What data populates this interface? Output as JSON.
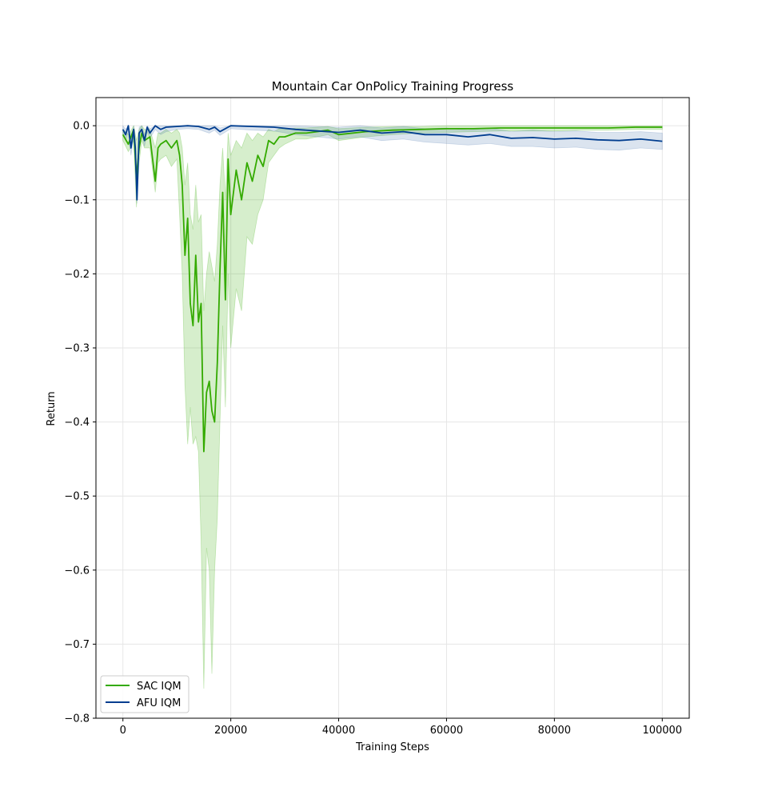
{
  "chart_data": {
    "type": "line",
    "title": "Mountain Car OnPolicy Training Progress",
    "xlabel": "Training Steps",
    "ylabel": "Return",
    "xlim": [
      -5000,
      105000
    ],
    "ylim": [
      -0.8,
      0.038
    ],
    "xticks": [
      0,
      20000,
      40000,
      60000,
      80000,
      100000
    ],
    "xtick_labels": [
      "0",
      "20000",
      "40000",
      "60000",
      "80000",
      "100000"
    ],
    "yticks": [
      0.0,
      -0.1,
      -0.2,
      -0.3,
      -0.4,
      -0.5,
      -0.6,
      -0.7,
      -0.8
    ],
    "ytick_labels": [
      "0.0",
      "−0.1",
      "−0.2",
      "−0.3",
      "−0.4",
      "−0.5",
      "−0.6",
      "−0.7",
      "−0.8"
    ],
    "grid": true,
    "legend_position": "lower-left",
    "series": [
      {
        "name": "SAC IQM",
        "color": "#33aa00",
        "fill_color": "#33aa00",
        "x": [
          0,
          1000,
          2000,
          2500,
          3000,
          3500,
          4000,
          5000,
          6000,
          6500,
          7000,
          8000,
          9000,
          10000,
          10500,
          11000,
          11500,
          12000,
          12500,
          13000,
          13500,
          14000,
          14500,
          15000,
          15500,
          16000,
          16500,
          17000,
          17500,
          18000,
          18500,
          19000,
          19500,
          20000,
          21000,
          22000,
          23000,
          24000,
          25000,
          26000,
          27000,
          28000,
          29000,
          30000,
          32000,
          34000,
          36000,
          38000,
          40000,
          45000,
          50000,
          55000,
          60000,
          65000,
          70000,
          75000,
          80000,
          85000,
          90000,
          95000,
          100000
        ],
        "y": [
          -0.012,
          -0.025,
          -0.005,
          -0.07,
          -0.03,
          -0.01,
          -0.02,
          -0.015,
          -0.075,
          -0.03,
          -0.025,
          -0.02,
          -0.03,
          -0.02,
          -0.04,
          -0.08,
          -0.175,
          -0.125,
          -0.24,
          -0.27,
          -0.175,
          -0.265,
          -0.24,
          -0.44,
          -0.36,
          -0.345,
          -0.385,
          -0.4,
          -0.32,
          -0.195,
          -0.09,
          -0.235,
          -0.045,
          -0.12,
          -0.06,
          -0.1,
          -0.05,
          -0.075,
          -0.04,
          -0.055,
          -0.02,
          -0.025,
          -0.015,
          -0.015,
          -0.01,
          -0.01,
          -0.008,
          -0.006,
          -0.012,
          -0.008,
          -0.006,
          -0.005,
          -0.004,
          -0.004,
          -0.003,
          -0.003,
          -0.003,
          -0.003,
          -0.003,
          -0.002,
          -0.002
        ],
        "lower": [
          -0.02,
          -0.035,
          -0.02,
          -0.11,
          -0.05,
          -0.02,
          -0.03,
          -0.03,
          -0.09,
          -0.05,
          -0.045,
          -0.04,
          -0.055,
          -0.045,
          -0.12,
          -0.2,
          -0.35,
          -0.43,
          -0.38,
          -0.43,
          -0.42,
          -0.44,
          -0.56,
          -0.76,
          -0.57,
          -0.6,
          -0.74,
          -0.6,
          -0.53,
          -0.4,
          -0.27,
          -0.38,
          -0.2,
          -0.3,
          -0.22,
          -0.25,
          -0.15,
          -0.16,
          -0.12,
          -0.1,
          -0.05,
          -0.04,
          -0.03,
          -0.025,
          -0.018,
          -0.018,
          -0.015,
          -0.012,
          -0.02,
          -0.015,
          -0.012,
          -0.01,
          -0.009,
          -0.008,
          -0.007,
          -0.007,
          -0.007,
          -0.006,
          -0.006,
          -0.005,
          -0.005
        ],
        "upper": [
          -0.005,
          -0.012,
          0.0,
          -0.02,
          -0.005,
          0.0,
          -0.005,
          -0.005,
          -0.03,
          -0.01,
          -0.01,
          -0.005,
          -0.01,
          -0.005,
          -0.01,
          -0.03,
          -0.08,
          -0.05,
          -0.12,
          -0.14,
          -0.08,
          -0.13,
          -0.12,
          -0.25,
          -0.2,
          -0.17,
          -0.19,
          -0.21,
          -0.16,
          -0.08,
          -0.03,
          -0.1,
          -0.01,
          -0.04,
          -0.02,
          -0.03,
          -0.01,
          -0.02,
          -0.01,
          -0.015,
          -0.005,
          -0.008,
          -0.004,
          -0.005,
          -0.003,
          -0.003,
          -0.002,
          -0.001,
          -0.004,
          -0.002,
          -0.001,
          -0.001,
          0.0,
          0.0,
          0.0,
          0.0,
          0.0,
          0.0,
          0.0,
          0.0,
          0.0
        ]
      },
      {
        "name": "AFU IQM",
        "color": "#003d8f",
        "fill_color": "#4a78b0",
        "x": [
          0,
          500,
          1000,
          1500,
          2000,
          2300,
          2600,
          3000,
          3500,
          4000,
          4500,
          5000,
          6000,
          7000,
          8000,
          10000,
          12000,
          14000,
          16000,
          17000,
          18000,
          20000,
          24000,
          28000,
          32000,
          36000,
          40000,
          44000,
          48000,
          52000,
          56000,
          60000,
          64000,
          68000,
          72000,
          76000,
          80000,
          84000,
          88000,
          92000,
          96000,
          100000
        ],
        "y": [
          -0.005,
          -0.012,
          0.0,
          -0.03,
          -0.005,
          -0.03,
          -0.1,
          -0.01,
          -0.005,
          -0.02,
          -0.002,
          -0.01,
          0.0,
          -0.005,
          -0.002,
          -0.001,
          0.0,
          -0.001,
          -0.005,
          -0.002,
          -0.008,
          0.0,
          -0.001,
          -0.002,
          -0.005,
          -0.007,
          -0.009,
          -0.006,
          -0.01,
          -0.008,
          -0.012,
          -0.012,
          -0.015,
          -0.012,
          -0.017,
          -0.016,
          -0.018,
          -0.017,
          -0.019,
          -0.02,
          -0.018,
          -0.021
        ],
        "lower": [
          -0.012,
          -0.02,
          -0.008,
          -0.04,
          -0.015,
          -0.04,
          -0.105,
          -0.02,
          -0.012,
          -0.028,
          -0.008,
          -0.017,
          -0.005,
          -0.012,
          -0.008,
          -0.005,
          -0.004,
          -0.005,
          -0.01,
          -0.006,
          -0.013,
          -0.004,
          -0.006,
          -0.007,
          -0.012,
          -0.015,
          -0.018,
          -0.015,
          -0.02,
          -0.018,
          -0.022,
          -0.024,
          -0.026,
          -0.024,
          -0.028,
          -0.028,
          -0.03,
          -0.029,
          -0.032,
          -0.033,
          -0.03,
          -0.032
        ],
        "upper": [
          0.0,
          -0.005,
          0.0,
          -0.02,
          0.0,
          -0.02,
          -0.09,
          -0.002,
          0.0,
          -0.012,
          0.0,
          -0.004,
          0.0,
          0.0,
          0.0,
          0.0,
          0.0,
          0.0,
          0.0,
          0.0,
          -0.003,
          0.0,
          0.0,
          0.0,
          0.0,
          -0.001,
          -0.002,
          0.0,
          -0.003,
          -0.001,
          -0.004,
          -0.003,
          -0.006,
          -0.003,
          -0.008,
          -0.006,
          -0.008,
          -0.007,
          -0.009,
          -0.009,
          -0.008,
          -0.01
        ]
      }
    ]
  }
}
